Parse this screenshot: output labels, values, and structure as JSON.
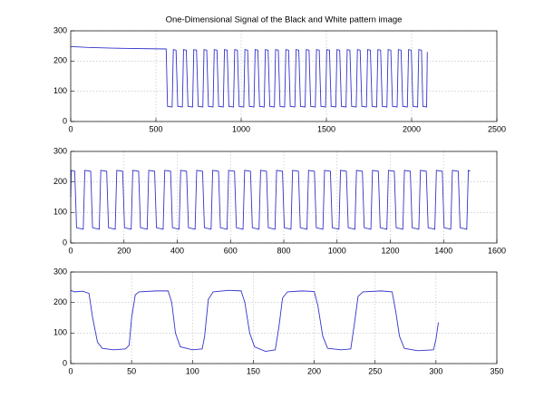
{
  "chart_data": [
    {
      "type": "line",
      "title": "One-Dimensional Signal of the Black and White pattern image",
      "xlim": [
        0,
        2500
      ],
      "xticks": [
        0,
        500,
        1000,
        1500,
        2000,
        2500
      ],
      "ylim": [
        0,
        300
      ],
      "yticks": [
        0,
        100,
        200,
        300
      ],
      "grid": true,
      "series": [
        {
          "color": "#3333cc",
          "x": [
            0,
            100,
            300,
            560,
            568,
            595,
            602,
            618,
            628,
            655,
            662,
            678,
            688,
            715,
            722,
            738,
            748,
            775,
            782,
            798,
            808,
            835,
            842,
            858,
            868,
            895,
            902,
            918,
            928,
            955,
            962,
            978,
            988,
            1015,
            1022,
            1038,
            1048,
            1075,
            1082,
            1098,
            1108,
            1135,
            1142,
            1158,
            1168,
            1195,
            1202,
            1218,
            1228,
            1255,
            1262,
            1278,
            1288,
            1315,
            1322,
            1338,
            1348,
            1375,
            1382,
            1398,
            1408,
            1435,
            1442,
            1458,
            1468,
            1495,
            1502,
            1518,
            1528,
            1555,
            1562,
            1578,
            1588,
            1615,
            1622,
            1638,
            1648,
            1675,
            1682,
            1698,
            1708,
            1735,
            1742,
            1758,
            1768,
            1795,
            1802,
            1818,
            1828,
            1855,
            1862,
            1878,
            1888,
            1915,
            1922,
            1938,
            1948,
            1975,
            1982,
            1998,
            2008,
            2035,
            2042,
            2058,
            2066,
            2088,
            2092
          ],
          "values": [
            248,
            245,
            242,
            240,
            50,
            48,
            238,
            236,
            50,
            48,
            238,
            236,
            50,
            48,
            238,
            236,
            50,
            48,
            238,
            236,
            50,
            48,
            238,
            236,
            50,
            48,
            238,
            236,
            50,
            48,
            238,
            236,
            50,
            48,
            238,
            236,
            50,
            48,
            238,
            236,
            50,
            48,
            238,
            236,
            50,
            48,
            238,
            236,
            50,
            48,
            238,
            236,
            50,
            48,
            238,
            236,
            50,
            48,
            238,
            236,
            50,
            48,
            238,
            236,
            50,
            48,
            238,
            236,
            50,
            48,
            238,
            236,
            50,
            48,
            238,
            236,
            50,
            48,
            238,
            236,
            50,
            48,
            238,
            236,
            50,
            48,
            238,
            236,
            50,
            48,
            238,
            236,
            50,
            48,
            238,
            236,
            50,
            48,
            238,
            236,
            50,
            48,
            238,
            236,
            50,
            48,
            230
          ]
        }
      ]
    },
    {
      "type": "line",
      "xlim": [
        0,
        1600
      ],
      "xticks": [
        0,
        200,
        400,
        600,
        800,
        1000,
        1200,
        1400,
        1600
      ],
      "ylim": [
        0,
        300
      ],
      "yticks": [
        0,
        100,
        200,
        300
      ],
      "grid": true,
      "series": [
        {
          "color": "#3333cc",
          "x": [
            0,
            2,
            15,
            22,
            47,
            53,
            75,
            82,
            107,
            113,
            135,
            142,
            167,
            173,
            195,
            202,
            227,
            233,
            255,
            262,
            287,
            293,
            315,
            322,
            347,
            353,
            375,
            382,
            407,
            413,
            435,
            442,
            467,
            473,
            495,
            502,
            527,
            533,
            555,
            562,
            587,
            593,
            615,
            622,
            647,
            653,
            675,
            682,
            707,
            713,
            735,
            742,
            767,
            773,
            795,
            802,
            827,
            833,
            855,
            862,
            887,
            893,
            915,
            922,
            947,
            953,
            975,
            982,
            1007,
            1013,
            1035,
            1042,
            1067,
            1073,
            1095,
            1102,
            1127,
            1133,
            1155,
            1162,
            1187,
            1193,
            1215,
            1222,
            1247,
            1253,
            1275,
            1282,
            1307,
            1313,
            1335,
            1342,
            1367,
            1373,
            1395,
            1402,
            1427,
            1433,
            1455,
            1462,
            1487,
            1493,
            1500
          ],
          "values": [
            150,
            238,
            235,
            50,
            45,
            238,
            235,
            50,
            45,
            238,
            235,
            50,
            45,
            238,
            235,
            50,
            45,
            238,
            235,
            50,
            45,
            238,
            235,
            50,
            45,
            238,
            235,
            50,
            45,
            238,
            235,
            50,
            45,
            238,
            235,
            50,
            45,
            238,
            235,
            50,
            45,
            238,
            235,
            50,
            45,
            238,
            235,
            50,
            45,
            238,
            235,
            50,
            45,
            238,
            235,
            50,
            45,
            238,
            235,
            50,
            45,
            238,
            235,
            50,
            45,
            238,
            235,
            50,
            45,
            238,
            235,
            50,
            45,
            238,
            235,
            50,
            45,
            238,
            235,
            50,
            45,
            238,
            235,
            50,
            45,
            238,
            235,
            50,
            45,
            238,
            235,
            50,
            45,
            238,
            235,
            50,
            45,
            238,
            235,
            50,
            45,
            238,
            235
          ]
        }
      ]
    },
    {
      "type": "line",
      "xlim": [
        0,
        350
      ],
      "xticks": [
        0,
        50,
        100,
        150,
        200,
        250,
        300,
        350
      ],
      "ylim": [
        0,
        300
      ],
      "yticks": [
        0,
        100,
        200,
        300
      ],
      "grid": true,
      "series": [
        {
          "color": "#3333cc",
          "x": [
            0,
            3,
            10,
            15,
            18,
            22,
            26,
            35,
            45,
            48,
            50,
            53,
            56,
            70,
            80,
            83,
            86,
            90,
            100,
            108,
            110,
            113,
            117,
            130,
            140,
            143,
            147,
            151,
            160,
            168,
            171,
            174,
            178,
            190,
            200,
            203,
            207,
            211,
            222,
            230,
            233,
            236,
            240,
            255,
            264,
            267,
            270,
            274,
            285,
            298,
            300,
            302
          ],
          "values": [
            240,
            235,
            237,
            230,
            150,
            70,
            50,
            45,
            48,
            60,
            150,
            225,
            235,
            238,
            238,
            200,
            100,
            55,
            45,
            48,
            90,
            210,
            235,
            240,
            238,
            200,
            100,
            55,
            40,
            45,
            120,
            215,
            235,
            238,
            236,
            190,
            90,
            50,
            45,
            48,
            130,
            220,
            235,
            238,
            235,
            170,
            90,
            50,
            42,
            45,
            80,
            135
          ]
        }
      ]
    }
  ]
}
